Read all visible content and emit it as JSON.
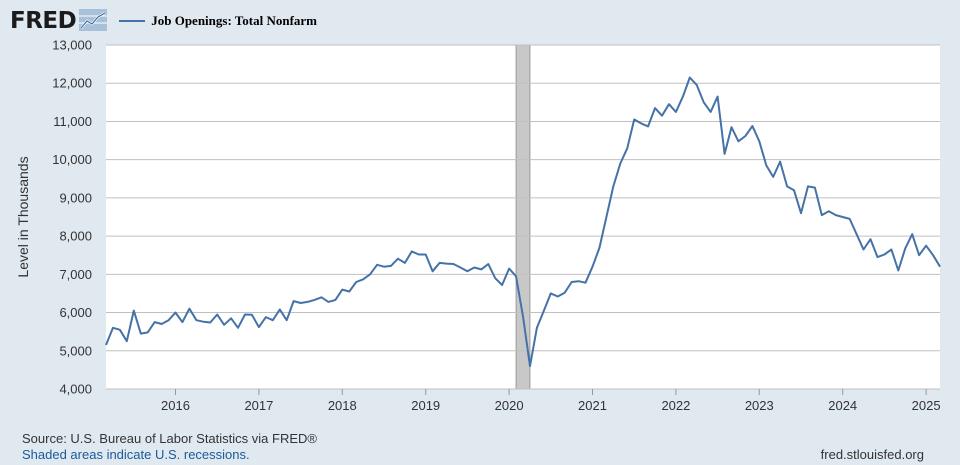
{
  "header": {
    "logo_text": "FRED",
    "logo_icon": "fred-graph-icon",
    "series_legend": "Job Openings: Total Nonfarm"
  },
  "footer": {
    "source": "Source: U.S. Bureau of Labor Statistics via FRED®",
    "recession_note": "Shaded areas indicate U.S. recessions.",
    "site": "fred.stlouisfed.org"
  },
  "colors": {
    "background": "#e1e9f0",
    "plot_background": "#ffffff",
    "line": "#4572a7",
    "recession": "#c8c8c8",
    "grid": "#c0c0c0"
  },
  "chart_data": {
    "type": "line",
    "title": "",
    "xlabel": "",
    "ylabel": "Level in Thousands",
    "ylim": [
      4000,
      13000
    ],
    "y_ticks": [
      "4,000",
      "5,000",
      "6,000",
      "7,000",
      "8,000",
      "9,000",
      "10,000",
      "11,000",
      "12,000",
      "13,000"
    ],
    "x_ticks": [
      "2016",
      "2017",
      "2018",
      "2019",
      "2020",
      "2021",
      "2022",
      "2023",
      "2024",
      "2025"
    ],
    "x_range": [
      "2015-03",
      "2025-03"
    ],
    "grid": "horizontal",
    "recessions": [
      {
        "start": "2020-02",
        "end": "2020-04"
      }
    ],
    "series": [
      {
        "name": "Job Openings: Total Nonfarm",
        "x": [
          "2015-03",
          "2015-04",
          "2015-05",
          "2015-06",
          "2015-07",
          "2015-08",
          "2015-09",
          "2015-10",
          "2015-11",
          "2015-12",
          "2016-01",
          "2016-02",
          "2016-03",
          "2016-04",
          "2016-05",
          "2016-06",
          "2016-07",
          "2016-08",
          "2016-09",
          "2016-10",
          "2016-11",
          "2016-12",
          "2017-01",
          "2017-02",
          "2017-03",
          "2017-04",
          "2017-05",
          "2017-06",
          "2017-07",
          "2017-08",
          "2017-09",
          "2017-10",
          "2017-11",
          "2017-12",
          "2018-01",
          "2018-02",
          "2018-03",
          "2018-04",
          "2018-05",
          "2018-06",
          "2018-07",
          "2018-08",
          "2018-09",
          "2018-10",
          "2018-11",
          "2018-12",
          "2019-01",
          "2019-02",
          "2019-03",
          "2019-04",
          "2019-05",
          "2019-06",
          "2019-07",
          "2019-08",
          "2019-09",
          "2019-10",
          "2019-11",
          "2019-12",
          "2020-01",
          "2020-02",
          "2020-03",
          "2020-04",
          "2020-05",
          "2020-06",
          "2020-07",
          "2020-08",
          "2020-09",
          "2020-10",
          "2020-11",
          "2020-12",
          "2021-01",
          "2021-02",
          "2021-03",
          "2021-04",
          "2021-05",
          "2021-06",
          "2021-07",
          "2021-08",
          "2021-09",
          "2021-10",
          "2021-11",
          "2021-12",
          "2022-01",
          "2022-02",
          "2022-03",
          "2022-04",
          "2022-05",
          "2022-06",
          "2022-07",
          "2022-08",
          "2022-09",
          "2022-10",
          "2022-11",
          "2022-12",
          "2023-01",
          "2023-02",
          "2023-03",
          "2023-04",
          "2023-05",
          "2023-06",
          "2023-07",
          "2023-08",
          "2023-09",
          "2023-10",
          "2023-11",
          "2023-12",
          "2024-01",
          "2024-02",
          "2024-03",
          "2024-04",
          "2024-05",
          "2024-06",
          "2024-07",
          "2024-08",
          "2024-09",
          "2024-10",
          "2024-11",
          "2024-12",
          "2025-01",
          "2025-02",
          "2025-03"
        ],
        "values": [
          5150,
          5600,
          5550,
          5250,
          6050,
          5450,
          5480,
          5750,
          5700,
          5800,
          6000,
          5750,
          6100,
          5800,
          5760,
          5740,
          5950,
          5680,
          5850,
          5600,
          5950,
          5940,
          5620,
          5880,
          5800,
          6080,
          5800,
          6300,
          6250,
          6280,
          6330,
          6400,
          6280,
          6330,
          6600,
          6550,
          6800,
          6870,
          7000,
          7250,
          7200,
          7220,
          7410,
          7300,
          7600,
          7520,
          7520,
          7080,
          7300,
          7280,
          7270,
          7180,
          7080,
          7180,
          7130,
          7270,
          6900,
          6720,
          7150,
          6950,
          5900,
          4600,
          5600,
          6050,
          6500,
          6420,
          6520,
          6800,
          6820,
          6780,
          7200,
          7700,
          8500,
          9300,
          9900,
          10300,
          11050,
          10950,
          10870,
          11350,
          11150,
          11450,
          11250,
          11650,
          12150,
          11950,
          11500,
          11250,
          11650,
          10150,
          10850,
          10480,
          10620,
          10880,
          10480,
          9850,
          9550,
          9950,
          9300,
          9200,
          8600,
          9300,
          9270,
          8550,
          8650,
          8550,
          8500,
          8450,
          8050,
          7650,
          7920,
          7450,
          7520,
          7650,
          7100,
          7680,
          8050,
          7500,
          7750,
          7500,
          7200
        ]
      }
    ]
  }
}
